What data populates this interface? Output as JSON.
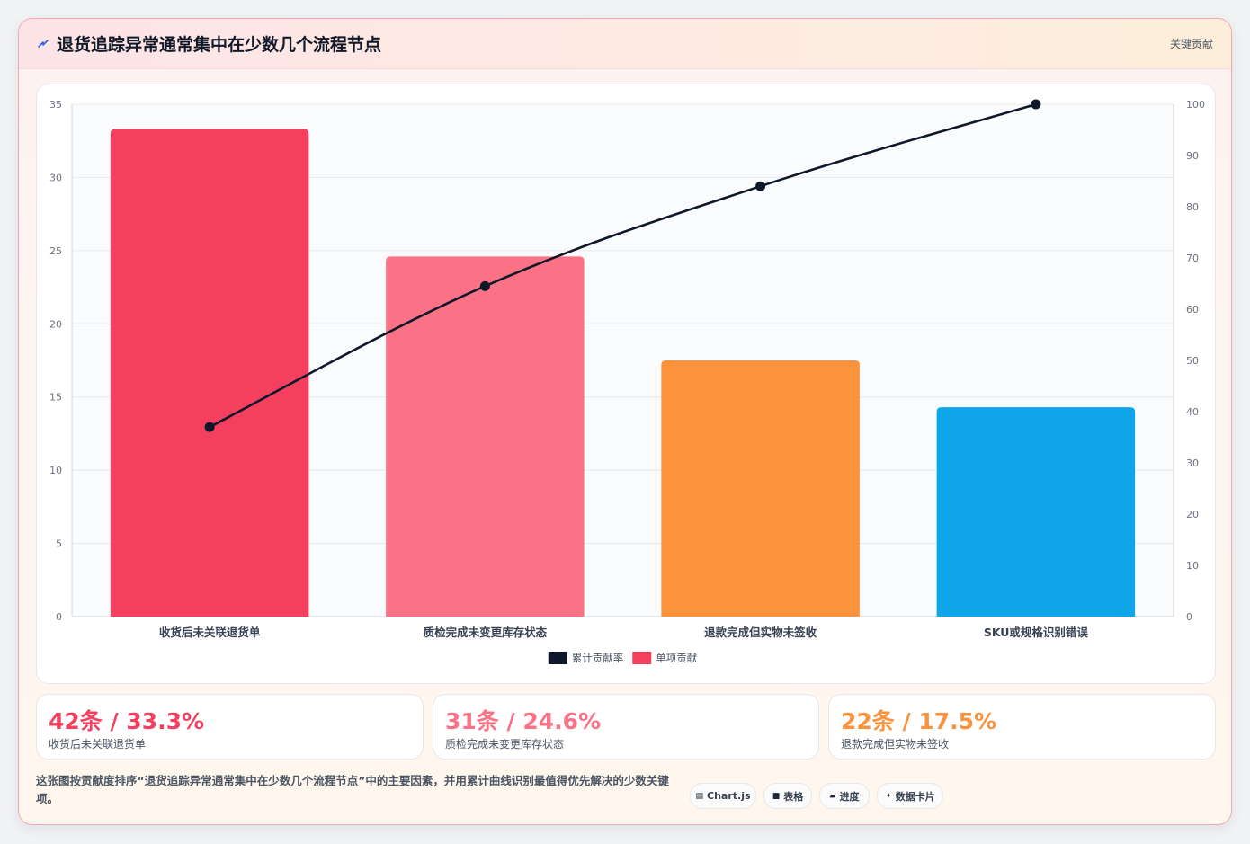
{
  "header": {
    "title": "退货追踪异常通常集中在少数几个流程节点",
    "tag": "关键贡献",
    "icon": "lightning-icon"
  },
  "chart_data": {
    "type": "bar",
    "categories": [
      "收货后未关联退货单",
      "质检完成未变更库存状态",
      "退款完成但实物未签收",
      "SKU或规格识别错误"
    ],
    "series": [
      {
        "name": "单项贡献",
        "type": "bar",
        "axis": "left",
        "values": [
          33.3,
          24.6,
          17.5,
          14.3
        ],
        "colors": [
          "#f43f5e",
          "#fb7185",
          "#fb923c",
          "#0ea5e9"
        ]
      },
      {
        "name": "累计贡献率",
        "type": "line",
        "axis": "right",
        "values": [
          37,
          64.5,
          84,
          100
        ],
        "color": "#0f172a"
      }
    ],
    "y_left": {
      "min": 0,
      "max": 35,
      "ticks": [
        0,
        5,
        10,
        15,
        20,
        25,
        30,
        35
      ]
    },
    "y_right": {
      "min": 0,
      "max": 100,
      "ticks": [
        0,
        10,
        20,
        30,
        40,
        50,
        60,
        70,
        80,
        90,
        100
      ]
    },
    "grid": true,
    "legend_position": "bottom-center",
    "legend": [
      {
        "label": "累计贡献率",
        "color": "#0f172a"
      },
      {
        "label": "单项贡献",
        "color": "#f43f5e"
      }
    ]
  },
  "stats": [
    {
      "value": "42条 / 33.3%",
      "label": "收货后未关联退货单",
      "color": "#f43f5e"
    },
    {
      "value": "31条 / 24.6%",
      "label": "质检完成未变更库存状态",
      "color": "#fb7185"
    },
    {
      "value": "22条 / 17.5%",
      "label": "退款完成但实物未签收",
      "color": "#fb923c"
    }
  ],
  "footnote": "这张图按贡献度排序“退货追踪异常通常集中在少数几个流程节点”中的主要因素，并用累计曲线识别最值得优先解决的少数关键项。",
  "pills": [
    {
      "icon": "chart-icon",
      "glyph": "▤",
      "label": "Chart.js"
    },
    {
      "icon": "table-icon",
      "glyph": "■",
      "label": "表格"
    },
    {
      "icon": "progress-icon",
      "glyph": "▰",
      "label": "进度"
    },
    {
      "icon": "card-icon",
      "glyph": "✦",
      "label": "数据卡片"
    }
  ]
}
